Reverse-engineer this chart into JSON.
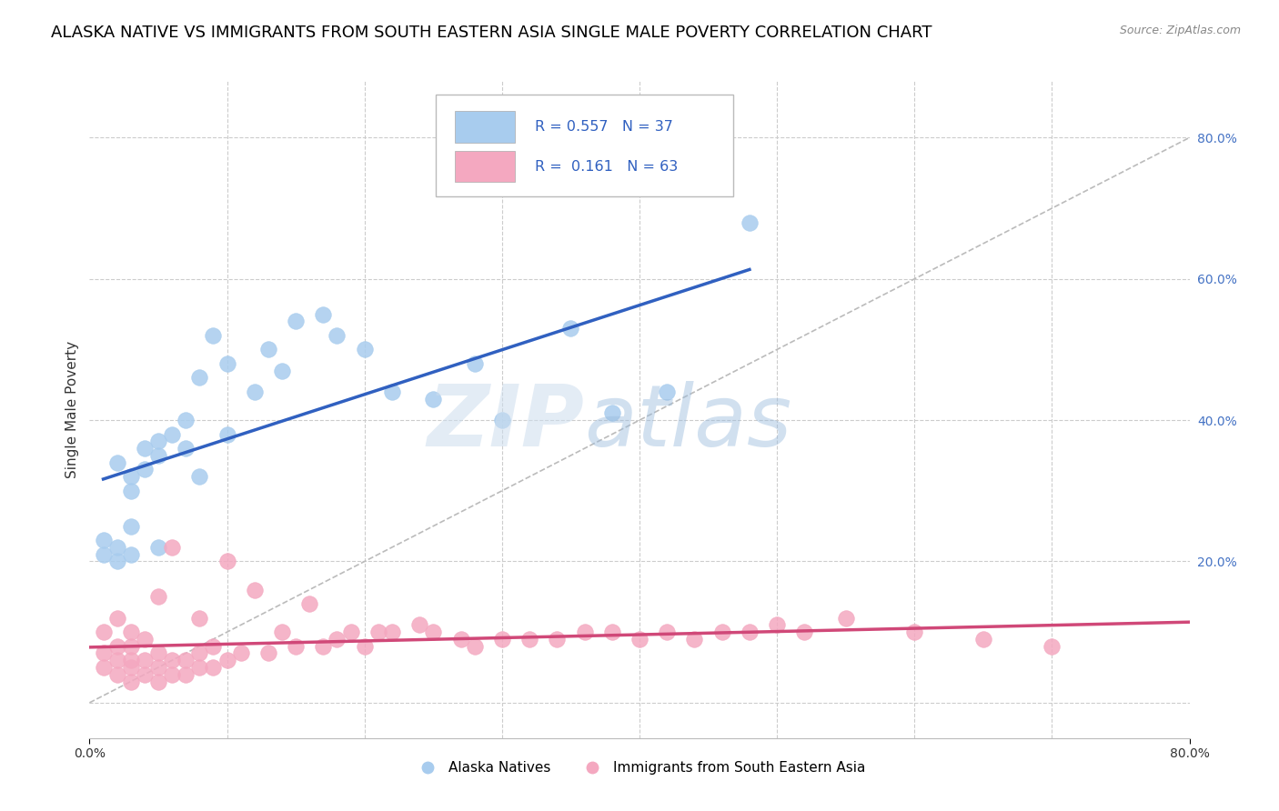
{
  "title": "ALASKA NATIVE VS IMMIGRANTS FROM SOUTH EASTERN ASIA SINGLE MALE POVERTY CORRELATION CHART",
  "source": "Source: ZipAtlas.com",
  "ylabel": "Single Male Poverty",
  "xlim": [
    0,
    0.8
  ],
  "ylim": [
    -0.05,
    0.88
  ],
  "blue_R": 0.557,
  "blue_N": 37,
  "pink_R": 0.161,
  "pink_N": 63,
  "blue_color": "#A8CCEE",
  "pink_color": "#F4A8C0",
  "blue_line_color": "#3060C0",
  "pink_line_color": "#D04878",
  "ref_line_color": "#BBBBBB",
  "legend_label_blue": "Alaska Natives",
  "legend_label_pink": "Immigrants from South Eastern Asia",
  "blue_scatter_x": [
    0.01,
    0.01,
    0.02,
    0.02,
    0.02,
    0.03,
    0.03,
    0.03,
    0.03,
    0.04,
    0.04,
    0.05,
    0.05,
    0.05,
    0.06,
    0.07,
    0.07,
    0.08,
    0.08,
    0.09,
    0.1,
    0.1,
    0.12,
    0.13,
    0.14,
    0.15,
    0.17,
    0.18,
    0.2,
    0.22,
    0.25,
    0.28,
    0.3,
    0.35,
    0.38,
    0.42,
    0.48
  ],
  "blue_scatter_y": [
    0.21,
    0.23,
    0.2,
    0.22,
    0.34,
    0.21,
    0.25,
    0.3,
    0.32,
    0.33,
    0.36,
    0.22,
    0.35,
    0.37,
    0.38,
    0.36,
    0.4,
    0.32,
    0.46,
    0.52,
    0.38,
    0.48,
    0.44,
    0.5,
    0.47,
    0.54,
    0.55,
    0.52,
    0.5,
    0.44,
    0.43,
    0.48,
    0.4,
    0.53,
    0.41,
    0.44,
    0.68
  ],
  "pink_scatter_x": [
    0.01,
    0.01,
    0.01,
    0.02,
    0.02,
    0.02,
    0.02,
    0.03,
    0.03,
    0.03,
    0.03,
    0.03,
    0.04,
    0.04,
    0.04,
    0.05,
    0.05,
    0.05,
    0.05,
    0.06,
    0.06,
    0.06,
    0.07,
    0.07,
    0.08,
    0.08,
    0.08,
    0.09,
    0.09,
    0.1,
    0.1,
    0.11,
    0.12,
    0.13,
    0.14,
    0.15,
    0.16,
    0.17,
    0.18,
    0.19,
    0.2,
    0.21,
    0.22,
    0.24,
    0.25,
    0.27,
    0.28,
    0.3,
    0.32,
    0.34,
    0.36,
    0.38,
    0.4,
    0.42,
    0.44,
    0.46,
    0.48,
    0.5,
    0.52,
    0.55,
    0.6,
    0.65,
    0.7
  ],
  "pink_scatter_y": [
    0.05,
    0.07,
    0.1,
    0.04,
    0.06,
    0.08,
    0.12,
    0.03,
    0.05,
    0.06,
    0.08,
    0.1,
    0.04,
    0.06,
    0.09,
    0.03,
    0.05,
    0.07,
    0.15,
    0.04,
    0.06,
    0.22,
    0.04,
    0.06,
    0.05,
    0.07,
    0.12,
    0.05,
    0.08,
    0.06,
    0.2,
    0.07,
    0.16,
    0.07,
    0.1,
    0.08,
    0.14,
    0.08,
    0.09,
    0.1,
    0.08,
    0.1,
    0.1,
    0.11,
    0.1,
    0.09,
    0.08,
    0.09,
    0.09,
    0.09,
    0.1,
    0.1,
    0.09,
    0.1,
    0.09,
    0.1,
    0.1,
    0.11,
    0.1,
    0.12,
    0.1,
    0.09,
    0.08
  ],
  "grid_color": "#CCCCCC",
  "title_fontsize": 13,
  "axis_label_fontsize": 11,
  "tick_fontsize": 10,
  "right_tick_color": "#4472C4"
}
